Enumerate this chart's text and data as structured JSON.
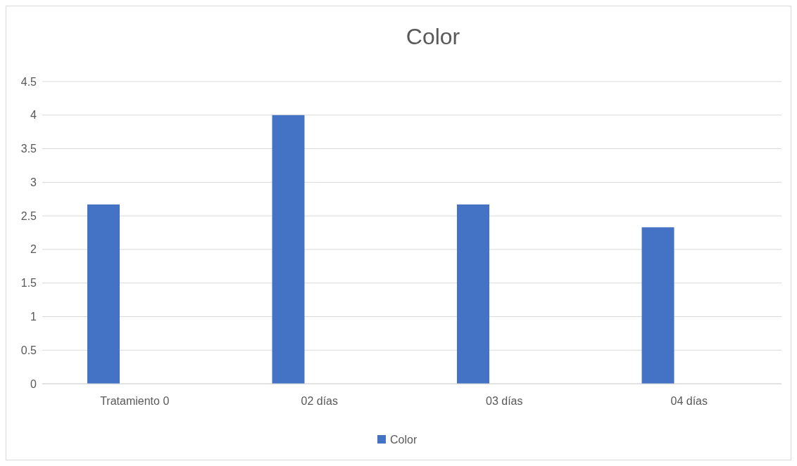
{
  "chart_data": {
    "type": "bar",
    "title": "Color",
    "categories": [
      "Tratamiento 0",
      "02 días",
      "03 días",
      "04 días"
    ],
    "series": [
      {
        "name": "Color",
        "color": "#4472c4",
        "values": [
          2.67,
          4,
          2.67,
          2.33
        ]
      }
    ],
    "ylim": [
      0,
      4.5
    ],
    "yticks": [
      0,
      {
        "value": 0.5,
        "label": "0.5"
      },
      1,
      {
        "value": 1.5,
        "label": "1.5"
      },
      2,
      {
        "value": 2.5,
        "label": "2.5"
      },
      3,
      {
        "value": 3.5,
        "label": "3.5"
      },
      4,
      {
        "value": 4.5,
        "label": "4.5"
      }
    ],
    "grid": "y",
    "legend": "bottom"
  }
}
